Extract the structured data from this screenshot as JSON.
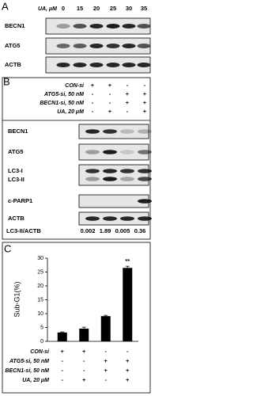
{
  "panel_a": {
    "label": "A",
    "treatment": "UA, μM",
    "doses": [
      0,
      15,
      20,
      25,
      30,
      35
    ],
    "blots": [
      "BECN1",
      "ATG5",
      "ACTB"
    ]
  },
  "panel_b": {
    "label": "B",
    "treatments": [
      {
        "name": "CON-si",
        "signs": [
          "+",
          "+",
          "-",
          "-"
        ]
      },
      {
        "name": "ATG5-si, 50 nM",
        "signs": [
          "-",
          "-",
          "+",
          "+"
        ]
      },
      {
        "name": "BECN1-si, 50 nM",
        "signs": [
          "-",
          "-",
          "+",
          "+"
        ]
      },
      {
        "name": "UA, 20 μM",
        "signs": [
          "-",
          "+",
          "-",
          "+"
        ]
      }
    ],
    "blots": [
      "BECN1",
      "ATG5",
      "LC3-I",
      "LC3-II",
      "c-PARP1",
      "ACTB"
    ],
    "ratio_label": "LC3-II/ACTB",
    "ratios": [
      0.002,
      1.89,
      0.005,
      0.36
    ]
  },
  "chart_data": {
    "type": "bar",
    "panel_label": "C",
    "ylabel": "Sub-G1(%)",
    "values": [
      3.2,
      4.6,
      9.1,
      26.5
    ],
    "errors": [
      0.2,
      0.5,
      0.3,
      0.6
    ],
    "significance": [
      null,
      null,
      null,
      "**"
    ],
    "color": "#000000",
    "ylim": [
      0,
      30
    ],
    "yticks": [
      0,
      5,
      10,
      15,
      20,
      25,
      30
    ],
    "treatments": [
      {
        "name": "CON-si",
        "signs": [
          "+",
          "+",
          "-",
          "-"
        ]
      },
      {
        "name": "ATG5-si, 50 nM",
        "signs": [
          "-",
          "-",
          "+",
          "+"
        ]
      },
      {
        "name": "BECN1-si, 50 nM",
        "signs": [
          "-",
          "-",
          "+",
          "+"
        ]
      },
      {
        "name": "UA, 20 μM",
        "signs": [
          "-",
          "+",
          "-",
          "+"
        ]
      }
    ]
  }
}
